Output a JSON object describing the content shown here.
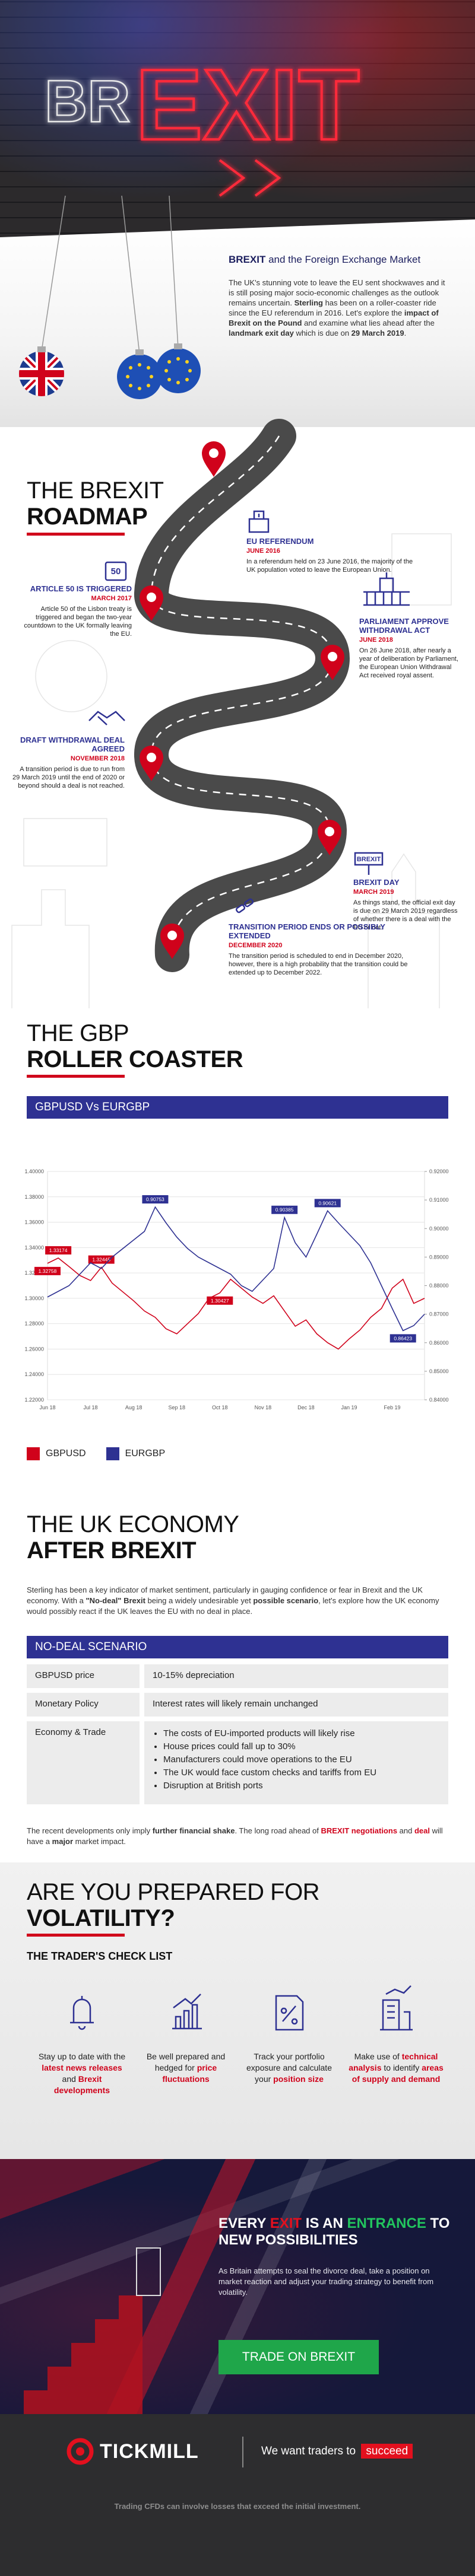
{
  "hero": {
    "prefix": "BR",
    "word": "EXIT"
  },
  "intro": {
    "heading": [
      {
        "t": "BREXIT",
        "s": "b"
      },
      {
        "t": " and the Foreign Exchange Market"
      }
    ],
    "paragraph": [
      {
        "t": "The UK's stunning vote to leave the EU sent shockwaves and it is still posing major socio-economic challenges as the outlook remains uncertain. "
      },
      {
        "t": "Sterling",
        "s": "b"
      },
      {
        "t": " has been on a roller-coaster ride since the EU referendum in 2016. Let's explore the "
      },
      {
        "t": "impact of Brexit on the Pound",
        "s": "b"
      },
      {
        "t": " and examine what lies ahead after the "
      },
      {
        "t": "landmark exit day",
        "s": "b"
      },
      {
        "t": " which is due on "
      },
      {
        "t": "29 March 2019",
        "s": "b"
      },
      {
        "t": "."
      }
    ]
  },
  "roadmap": {
    "title": [
      "THE BREXIT",
      "ROADMAP"
    ],
    "events": [
      {
        "title": "EU REFERENDUM",
        "date": "JUNE 2016",
        "text": "In a referendum held on 23 June 2016, the majority of the UK population voted to leave the European Union."
      },
      {
        "title": "ARTICLE 50 IS TRIGGERED",
        "date": "MARCH 2017",
        "text": "Article 50 of the Lisbon treaty is triggered and began the two-year countdown to the UK formally leaving the EU.",
        "icon_text": "50"
      },
      {
        "title": "PARLIAMENT APPROVE WITHDRAWAL ACT",
        "date": "JUNE 2018",
        "text": "On 26 June 2018, after nearly a year of deliberation by Parliament, the European Union Withdrawal Act received royal assent."
      },
      {
        "title": "DRAFT WITHDRAWAL DEAL AGREED",
        "date": "NOVEMBER 2018",
        "text": "A transition period is due to run from 29 March 2019 until the end of 2020 or beyond should a deal is not reached."
      },
      {
        "title": "BREXIT DAY",
        "date": "MARCH 2019",
        "text": "As things stand, the official exit day is due on 29 March 2019 regardless of whether there is a deal with the EU or not.",
        "icon_text": "BREXIT"
      },
      {
        "title": "TRANSITION PERIOD ENDS OR POSSIBLY EXTENDED",
        "date": "DECEMBER 2020",
        "text": "The transition period is scheduled to end in December 2020, however, there is a high probability that the transition could be extended up to December 2022."
      }
    ]
  },
  "roller_coaster": {
    "title": [
      "THE GBP",
      "ROLLER COASTER"
    ]
  },
  "chart_data": {
    "type": "line",
    "title": "GBPUSD Vs EURGBP",
    "categories": [
      "Jun 18",
      null,
      null,
      null,
      "Jul 18",
      null,
      null,
      null,
      "Aug 18",
      null,
      null,
      null,
      "Sep 18",
      null,
      null,
      null,
      "Oct 18",
      null,
      null,
      null,
      "Nov 18",
      null,
      null,
      null,
      "Dec 18",
      null,
      null,
      null,
      "Jan 19",
      null,
      null,
      null,
      "Feb 19",
      null,
      null,
      null
    ],
    "series": [
      {
        "name": "GBPUSD",
        "color": "#d0021b",
        "values": [
          1.32758,
          1.33174,
          1.325,
          1.318,
          1.314,
          1.32445,
          1.312,
          1.305,
          1.298,
          1.29,
          1.285,
          1.276,
          1.272,
          1.28,
          1.288,
          1.3,
          1.30427,
          1.315,
          1.308,
          1.301,
          1.296,
          1.302,
          1.29,
          1.278,
          1.283,
          1.272,
          1.265,
          1.26,
          1.268,
          1.275,
          1.285,
          1.292,
          1.308,
          1.315,
          1.296,
          1.3
        ],
        "value_labels": [
          "1.32758",
          "1.33174",
          null,
          null,
          null,
          "1.32445",
          null,
          null,
          null,
          null,
          null,
          null,
          null,
          null,
          null,
          null,
          "1.30427",
          null,
          null,
          null,
          null,
          null,
          null,
          null,
          null,
          null,
          null,
          null,
          null,
          null,
          null,
          null,
          null,
          null,
          null,
          null
        ]
      },
      {
        "name": "EURGBP",
        "color": "#2e3192",
        "axis": "y2",
        "values": [
          0.876,
          0.878,
          0.88,
          0.884,
          0.888,
          0.886,
          0.89,
          0.893,
          0.896,
          0.899,
          0.90753,
          0.902,
          0.897,
          0.893,
          0.89,
          0.888,
          0.886,
          0.884,
          0.88,
          0.878,
          0.882,
          0.886,
          0.90385,
          0.895,
          0.89,
          0.898,
          0.90621,
          0.902,
          0.898,
          0.894,
          0.888,
          0.88,
          0.872,
          0.86423,
          0.866,
          0.87
        ],
        "value_labels": [
          null,
          null,
          null,
          null,
          null,
          null,
          null,
          null,
          null,
          null,
          "0.90753",
          null,
          null,
          null,
          null,
          null,
          null,
          null,
          null,
          null,
          null,
          null,
          "0.90385",
          null,
          null,
          null,
          "0.90621",
          null,
          null,
          null,
          null,
          null,
          null,
          "0.86423",
          null,
          null
        ]
      }
    ],
    "ylim": [
      1.22,
      1.4
    ],
    "yticks": [
      {
        "value": 1.22,
        "label": "1.22000"
      },
      {
        "value": 1.24,
        "label": "1.24000"
      },
      {
        "value": 1.26,
        "label": "1.26000"
      },
      {
        "value": 1.28,
        "label": "1.28000"
      },
      {
        "value": 1.3,
        "label": "1.30000"
      },
      {
        "value": 1.32,
        "label": "1.32000"
      },
      {
        "value": 1.34,
        "label": "1.34000"
      },
      {
        "value": 1.36,
        "label": "1.36000"
      },
      {
        "value": 1.38,
        "label": "1.38000"
      },
      {
        "value": 1.4,
        "label": "1.40000"
      }
    ],
    "y2lim": [
      0.84,
      0.92
    ],
    "y2ticks": [
      {
        "value": 0.84,
        "label": "0.84000"
      },
      {
        "value": 0.85,
        "label": "0.85000"
      },
      {
        "value": 0.86,
        "label": "0.86000"
      },
      {
        "value": 0.87,
        "label": "0.87000"
      },
      {
        "value": 0.88,
        "label": "0.88000"
      },
      {
        "value": 0.89,
        "label": "0.89000"
      },
      {
        "value": 0.9,
        "label": "0.90000"
      },
      {
        "value": 0.91,
        "label": "0.91000"
      },
      {
        "value": 0.92,
        "label": "0.92000"
      }
    ],
    "grid": true,
    "legend": "bottom"
  },
  "economy": {
    "title": [
      "THE UK ECONOMY",
      "AFTER BREXIT"
    ],
    "intro": [
      {
        "t": "Sterling has been a key indicator of market sentiment, particularly in gauging confidence or fear in Brexit and the UK economy. With a "
      },
      {
        "t": "\"No-deal\" Brexit",
        "s": "b"
      },
      {
        "t": " being a widely undesirable yet "
      },
      {
        "t": "possible scenario",
        "s": "b"
      },
      {
        "t": ", let's explore how the UK economy would possibly react if the UK leaves the EU with no deal in place."
      }
    ],
    "table": {
      "title": "NO-DEAL SCENARIO",
      "rows": [
        [
          "GBPUSD price",
          "10-15% depreciation"
        ],
        [
          "Monetary Policy",
          "Interest rates will likely remain unchanged"
        ],
        [
          "Economy & Trade",
          [
            "The costs of EU-imported products will likely rise",
            "House prices could fall up to 30%",
            "Manufacturers could move operations to the EU",
            "The UK would face custom checks and tariffs from EU",
            "Disruption at British ports"
          ]
        ]
      ]
    },
    "outro": [
      {
        "t": "The recent developments only imply "
      },
      {
        "t": "further financial shake",
        "s": "b"
      },
      {
        "t": ". The long road ahead of "
      },
      {
        "t": "BREXIT negotiations",
        "s": "r"
      },
      {
        "t": " and "
      },
      {
        "t": "deal",
        "s": "r"
      },
      {
        "t": " will have a "
      },
      {
        "t": "major",
        "s": "b"
      },
      {
        "t": " market impact."
      }
    ]
  },
  "volatility": {
    "title": [
      "ARE YOU PREPARED FOR",
      "VOLATILITY?"
    ],
    "checklist_title": "THE TRADER'S CHECK LIST",
    "items": [
      [
        {
          "t": "Stay up to date with the "
        },
        {
          "t": "latest news releases",
          "s": "r"
        },
        {
          "t": " and "
        },
        {
          "t": "Brexit developments",
          "s": "r"
        }
      ],
      [
        {
          "t": "Be well prepared and hedged for "
        },
        {
          "t": "price fluctuations",
          "s": "r"
        }
      ],
      [
        {
          "t": "Track your portfolio exposure and calculate your "
        },
        {
          "t": "position size",
          "s": "r"
        }
      ],
      [
        {
          "t": "Make use of "
        },
        {
          "t": "technical analysis",
          "s": "r"
        },
        {
          "t": " to identify "
        },
        {
          "t": "areas of supply and demand",
          "s": "r"
        }
      ]
    ]
  },
  "cta": {
    "heading": [
      {
        "t": "EVERY "
      },
      {
        "t": "EXIT",
        "s": "red"
      },
      {
        "t": " IS AN "
      },
      {
        "t": "ENTRANCE",
        "s": "g"
      },
      {
        "t": " TO NEW POSSIBILITIES"
      }
    ],
    "text": "As Britain attempts to seal the divorce deal, take a position on market reaction and adjust your trading strategy to benefit from volatility.",
    "button": "TRADE ON BREXIT"
  },
  "footer": {
    "brand": "TICKMILL",
    "tagline": "We want traders to",
    "highlight": "succeed",
    "disclaimer": "Trading CFDs can involve losses that exceed the initial investment."
  }
}
